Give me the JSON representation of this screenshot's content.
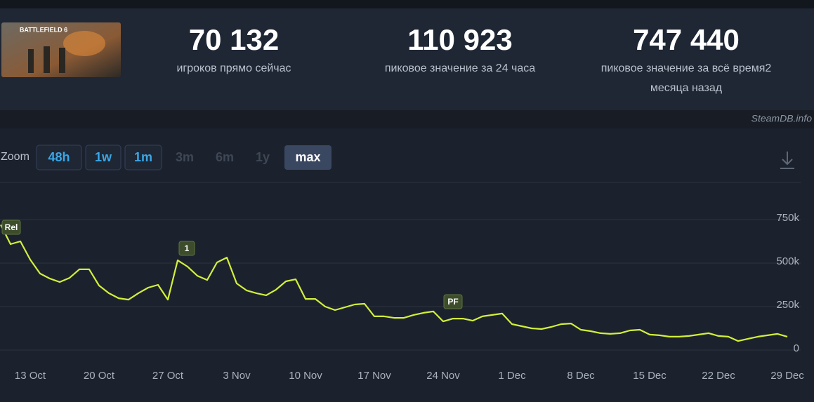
{
  "game": {
    "banner": "BATTLEFIELD 6"
  },
  "stats": [
    {
      "value": "70 132",
      "lines": [
        "игроков прямо сейчас"
      ]
    },
    {
      "value": "110 923",
      "lines": [
        "пиковое значение за 24 часа"
      ]
    },
    {
      "value": "747 440",
      "lines": [
        "пиковое значение за всё время2",
        "месяца назад"
      ]
    }
  ],
  "source": "SteamDB.info",
  "zoom": {
    "label": "Zoom",
    "buttons": [
      "48h",
      "1w",
      "1m",
      "3m",
      "6m",
      "1y",
      "max"
    ]
  },
  "chart_data": {
    "type": "line",
    "color": "#d2f03a",
    "categories": [
      null,
      null,
      null,
      "13 Oct",
      null,
      null,
      null,
      null,
      null,
      null,
      "20 Oct",
      null,
      null,
      null,
      null,
      null,
      null,
      "27 Oct",
      null,
      null,
      null,
      null,
      null,
      null,
      "3 Nov",
      null,
      null,
      null,
      null,
      null,
      null,
      "10 Nov",
      null,
      null,
      null,
      null,
      null,
      null,
      "17 Nov",
      null,
      null,
      null,
      null,
      null,
      null,
      "24 Nov",
      null,
      null,
      null,
      null,
      null,
      null,
      "1 Dec",
      null,
      null,
      null,
      null,
      null,
      null,
      "8 Dec",
      null,
      null,
      null,
      null,
      null,
      null,
      "15 Dec",
      null,
      null,
      null,
      null,
      null,
      null,
      "22 Dec",
      null,
      null,
      null,
      null,
      null,
      null,
      "29 Dec"
    ],
    "values": [
      720000,
      609000,
      625000,
      520000,
      440000,
      411000,
      391000,
      415000,
      464000,
      464000,
      371000,
      327000,
      298000,
      290000,
      327000,
      359000,
      375000,
      290000,
      516000,
      480000,
      427000,
      403000,
      504000,
      532000,
      383000,
      343000,
      327000,
      315000,
      347000,
      395000,
      407000,
      294000,
      294000,
      250000,
      230000,
      246000,
      262000,
      266000,
      194000,
      194000,
      185000,
      185000,
      202000,
      214000,
      222000,
      165000,
      181000,
      181000,
      169000,
      194000,
      202000,
      210000,
      149000,
      137000,
      125000,
      121000,
      133000,
      149000,
      153000,
      117000,
      109000,
      97000,
      93000,
      97000,
      113000,
      117000,
      89000,
      85000,
      77000,
      77000,
      81000,
      89000,
      97000,
      81000,
      77000,
      52000,
      65000,
      77000,
      85000,
      93000,
      77000
    ],
    "ylim": [
      0,
      950000
    ],
    "yticks": [
      0,
      {
        "value": 250000,
        "label": "250k"
      },
      {
        "value": 500000,
        "label": "500k"
      },
      {
        "value": 750000,
        "label": "750k"
      }
    ],
    "grid": true,
    "annotations": [
      "Rel",
      "1",
      "PF"
    ]
  }
}
